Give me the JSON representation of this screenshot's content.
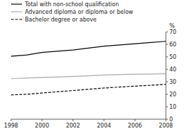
{
  "chart_data": {
    "type": "line",
    "ylabel": "%",
    "x": [
      1998,
      1999,
      2000,
      2001,
      2002,
      2003,
      2004,
      2005,
      2006,
      2007,
      2008
    ],
    "series": [
      {
        "name": "Total with non-school qualification",
        "color": "#000000",
        "line_style": "solid",
        "values": [
          50.5,
          51.5,
          53.5,
          54.5,
          55.5,
          57.0,
          58.5,
          59.5,
          60.5,
          61.5,
          62.5
        ]
      },
      {
        "name": "Advanced diploma or diploma or below",
        "color": "#aaaaaa",
        "line_style": "solid",
        "values": [
          32.5,
          33.0,
          33.5,
          33.8,
          34.2,
          34.8,
          35.5,
          35.8,
          36.0,
          36.2,
          36.5
        ]
      },
      {
        "name": "Bachelor degree or above",
        "color": "#000000",
        "line_style": "dashed",
        "values": [
          19.5,
          20.0,
          21.0,
          22.0,
          23.0,
          24.0,
          25.0,
          25.8,
          26.5,
          27.2,
          28.0
        ]
      }
    ],
    "xlim": [
      1998,
      2008
    ],
    "xticks": [
      1998,
      2000,
      2002,
      2004,
      2006,
      2008
    ],
    "ylim": [
      0,
      70
    ],
    "yticks": [
      0,
      10,
      20,
      30,
      40,
      50,
      60,
      70
    ],
    "legend": "top"
  }
}
